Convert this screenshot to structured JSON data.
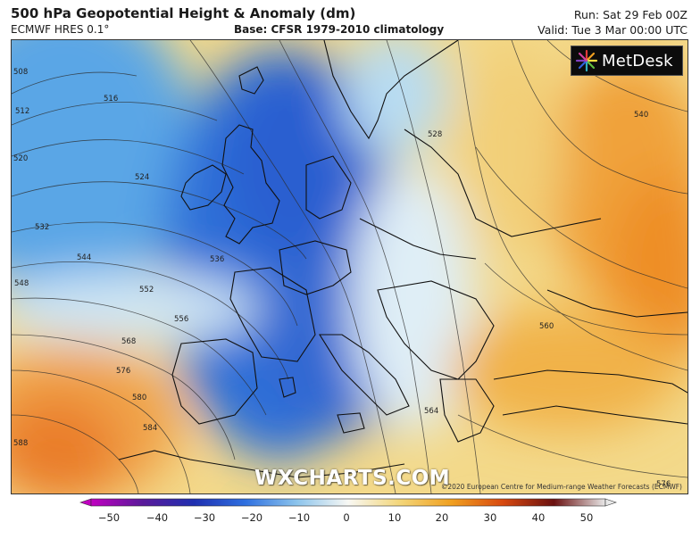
{
  "header": {
    "title": "500 hPa Geopotential Height & Anomaly (dm)",
    "model": "ECMWF HRES 0.1°",
    "base": "Base: CFSR 1979-2010 climatology",
    "run": "Run: Sat 29 Feb 00Z",
    "valid": "Valid: Tue 3 Mar 00:00 UTC"
  },
  "logo": {
    "text": "MetDesk"
  },
  "watermark": "WXCHARTS.COM",
  "copyright": "©2020 European Centre for Medium-range Weather Forecasts (ECMWF)",
  "contour_labels": [
    "508",
    "512",
    "516",
    "520",
    "524",
    "528",
    "532",
    "536",
    "540",
    "544",
    "548",
    "552",
    "556",
    "560",
    "564",
    "568",
    "576",
    "580",
    "584",
    "588",
    "576"
  ],
  "colorbar": {
    "ticks": [
      "−50",
      "−40",
      "−30",
      "−20",
      "−10",
      "0",
      "10",
      "20",
      "30",
      "40",
      "50"
    ],
    "colors": [
      "#b000b0",
      "#3a1a8a",
      "#1f3cc8",
      "#2f7fe0",
      "#8cc4ec",
      "#f5f6f4",
      "#f2d27a",
      "#f0a020",
      "#e05a10",
      "#8a1010",
      "#d8d8d8"
    ]
  }
}
